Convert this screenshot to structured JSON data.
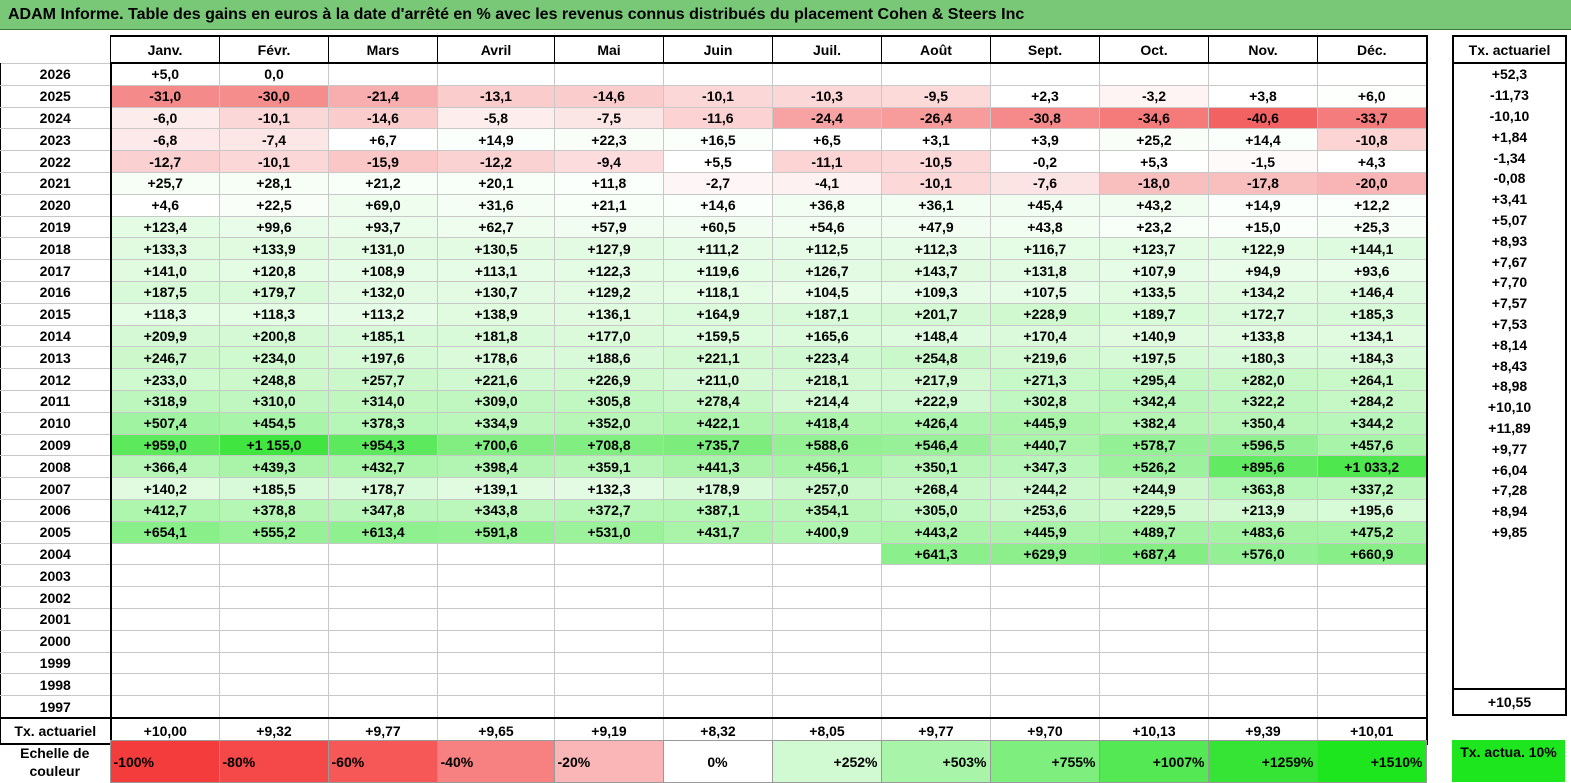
{
  "title": "ADAM Informe. Table des gains en euros à la date d'arrêté en % avec les revenus connus distribués du placement Cohen & Steers Inc",
  "months": [
    "Janv.",
    "Févr.",
    "Mars",
    "Avril",
    "Mai",
    "Juin",
    "Juil.",
    "Août",
    "Sept.",
    "Oct.",
    "Nov.",
    "Déc."
  ],
  "side_header": "Tx. actuariel",
  "rows": [
    {
      "year": "2026",
      "values": [
        "+5,0",
        "0,0",
        "",
        "",
        "",
        "",
        "",
        "",
        "",
        "",
        "",
        ""
      ],
      "colors": [
        "#ffffff",
        "#ffffff",
        "#ffffff",
        "#ffffff",
        "#ffffff",
        "#ffffff",
        "#ffffff",
        "#ffffff",
        "#ffffff",
        "#ffffff",
        "#ffffff",
        "#ffffff"
      ],
      "rate": "+52,3"
    },
    {
      "year": "2025",
      "values": [
        "-31,0",
        "-30,0",
        "-21,4",
        "-13,1",
        "-14,6",
        "-10,1",
        "-10,3",
        "-9,5",
        "+2,3",
        "-3,2",
        "+3,8",
        "+6,0"
      ],
      "colors": [
        "#f58a8a",
        "#f58d8d",
        "#f8aeae",
        "#fbcccc",
        "#facccc",
        "#fcd7d7",
        "#fcd7d7",
        "#fcdada",
        "#ffffff",
        "#fef4f4",
        "#ffffff",
        "#fdfffd"
      ],
      "rate": "-11,73"
    },
    {
      "year": "2024",
      "values": [
        "-6,0",
        "-10,1",
        "-14,6",
        "-5,8",
        "-7,5",
        "-11,6",
        "-24,4",
        "-26,4",
        "-30,8",
        "-34,6",
        "-40,6",
        "-33,7"
      ],
      "colors": [
        "#fdecec",
        "#fcd7d7",
        "#facccc",
        "#fdeded",
        "#fce5e5",
        "#fcd2d2",
        "#f8a3a3",
        "#f79b9b",
        "#f68a8a",
        "#f57a7a",
        "#f36262",
        "#f57c7c"
      ],
      "rate": "-10,10"
    },
    {
      "year": "2023",
      "values": [
        "-6,8",
        "-7,4",
        "+6,7",
        "+14,9",
        "+22,3",
        "+16,5",
        "+6,5",
        "+3,1",
        "+3,9",
        "+25,2",
        "+14,4",
        "-10,8"
      ],
      "colors": [
        "#fde9e9",
        "#fde6e6",
        "#ffffff",
        "#fbfffb",
        "#f9fef9",
        "#fbfffb",
        "#ffffff",
        "#ffffff",
        "#ffffff",
        "#f9fef9",
        "#fbfffb",
        "#fcd4d4"
      ],
      "rate": "+1,84"
    },
    {
      "year": "2022",
      "values": [
        "-12,7",
        "-10,1",
        "-15,9",
        "-12,2",
        "-9,4",
        "+5,5",
        "-11,1",
        "-10,5",
        "-0,2",
        "+5,3",
        "-1,5",
        "+4,3"
      ],
      "colors": [
        "#fbd0d0",
        "#fcd7d7",
        "#fac6c6",
        "#fbd2d2",
        "#fcdcdc",
        "#ffffff",
        "#fcd4d4",
        "#fcd8d8",
        "#ffffff",
        "#ffffff",
        "#fefafa",
        "#ffffff"
      ],
      "rate": "-1,34"
    },
    {
      "year": "2021",
      "values": [
        "+25,7",
        "+28,1",
        "+21,2",
        "+20,1",
        "+11,8",
        "-2,7",
        "-4,1",
        "-10,1",
        "-7,6",
        "-18,0",
        "-17,8",
        "-20,0"
      ],
      "colors": [
        "#f6fef6",
        "#f6fef6",
        "#f8fef8",
        "#f8fef8",
        "#fbfffb",
        "#fef6f6",
        "#fef1f1",
        "#fcd8d8",
        "#fde4e4",
        "#f9bebe",
        "#f9bfbf",
        "#f9b5b5"
      ],
      "rate": "-0,08"
    },
    {
      "year": "2020",
      "values": [
        "+4,6",
        "+22,5",
        "+69,0",
        "+31,6",
        "+21,1",
        "+14,6",
        "+36,8",
        "+36,1",
        "+45,4",
        "+43,2",
        "+14,9",
        "+12,2"
      ],
      "colors": [
        "#ffffff",
        "#f9fef9",
        "#eefdee",
        "#f5fef5",
        "#f8fef8",
        "#fbfffb",
        "#f3fef3",
        "#f3fef3",
        "#f1fdf1",
        "#f2fdf2",
        "#fbfffb",
        "#fbfffb"
      ],
      "rate": "+3,41"
    },
    {
      "year": "2019",
      "values": [
        "+123,4",
        "+99,6",
        "+93,7",
        "+62,7",
        "+57,9",
        "+60,5",
        "+54,6",
        "+47,9",
        "+43,8",
        "+23,2",
        "+15,0",
        "+25,3"
      ],
      "colors": [
        "#e4fce4",
        "#e9fce9",
        "#eafdea",
        "#effdef",
        "#f0fdf0",
        "#f0fdf0",
        "#f1fdf1",
        "#f2fdf2",
        "#f3fef3",
        "#f8fef8",
        "#fbfffb",
        "#f7fef7"
      ],
      "rate": "+5,07"
    },
    {
      "year": "2018",
      "values": [
        "+133,3",
        "+133,9",
        "+131,0",
        "+130,5",
        "+127,9",
        "+111,2",
        "+112,5",
        "+112,3",
        "+116,7",
        "+123,7",
        "+122,9",
        "+144,1"
      ],
      "colors": [
        "#e1fbe1",
        "#e1fbe1",
        "#e2fbe2",
        "#e2fbe2",
        "#e3fbe3",
        "#e6fce6",
        "#e6fce6",
        "#e6fce6",
        "#e5fce5",
        "#e4fbe4",
        "#e4fbe4",
        "#dffbdf"
      ],
      "rate": "+8,93"
    },
    {
      "year": "2017",
      "values": [
        "+141,0",
        "+120,8",
        "+108,9",
        "+113,1",
        "+122,3",
        "+119,6",
        "+126,7",
        "+143,7",
        "+131,8",
        "+107,9",
        "+94,9",
        "+93,6"
      ],
      "colors": [
        "#e0fbe0",
        "#e4fbe4",
        "#e7fce7",
        "#e6fce6",
        "#e4fbe4",
        "#e5fce5",
        "#e3fbe3",
        "#e0fbe0",
        "#e2fbe2",
        "#e7fce7",
        "#eafdea",
        "#eafdea"
      ],
      "rate": "+7,67"
    },
    {
      "year": "2016",
      "values": [
        "+187,5",
        "+179,7",
        "+132,0",
        "+130,7",
        "+129,2",
        "+118,1",
        "+104,5",
        "+109,3",
        "+107,5",
        "+133,5",
        "+134,2",
        "+146,4"
      ],
      "colors": [
        "#d8fad8",
        "#d9fad9",
        "#e2fbe2",
        "#e2fbe2",
        "#e3fbe3",
        "#e5fce5",
        "#e8fce8",
        "#e7fce7",
        "#e7fce7",
        "#e1fbe1",
        "#e1fbe1",
        "#dffbdf"
      ],
      "rate": "+7,70"
    },
    {
      "year": "2015",
      "values": [
        "+118,3",
        "+118,3",
        "+113,2",
        "+138,9",
        "+136,1",
        "+164,9",
        "+187,1",
        "+201,7",
        "+228,9",
        "+189,7",
        "+172,7",
        "+185,3"
      ],
      "colors": [
        "#e5fce5",
        "#e5fce5",
        "#e6fce6",
        "#e0fbe0",
        "#e1fbe1",
        "#dcfadc",
        "#d8fad8",
        "#d5f9d5",
        "#d0f9d0",
        "#d7fad7",
        "#dbfadb",
        "#d8fad8"
      ],
      "rate": "+7,57"
    },
    {
      "year": "2014",
      "values": [
        "+209,9",
        "+200,8",
        "+185,1",
        "+181,8",
        "+177,0",
        "+159,5",
        "+165,6",
        "+148,4",
        "+170,4",
        "+140,9",
        "+133,8",
        "+134,1"
      ],
      "colors": [
        "#d4f9d4",
        "#d5f9d5",
        "#d8fad8",
        "#d9fad9",
        "#dafada",
        "#ddfbdd",
        "#dcfadc",
        "#dffbdf",
        "#dbfadb",
        "#e0fbe0",
        "#e1fbe1",
        "#e1fbe1"
      ],
      "rate": "+7,53"
    },
    {
      "year": "2013",
      "values": [
        "+246,7",
        "+234,0",
        "+197,6",
        "+178,6",
        "+188,6",
        "+221,1",
        "+223,4",
        "+254,8",
        "+219,6",
        "+197,5",
        "+180,3",
        "+184,3"
      ],
      "colors": [
        "#ccf8cc",
        "#cff9cf",
        "#d6f9d6",
        "#dafada",
        "#d8fad8",
        "#d2f9d2",
        "#d1f9d1",
        "#cbf8cb",
        "#d2f9d2",
        "#d6f9d6",
        "#d9fad9",
        "#d8fad8"
      ],
      "rate": "+8,14"
    },
    {
      "year": "2012",
      "values": [
        "+233,0",
        "+248,8",
        "+257,7",
        "+221,6",
        "+226,9",
        "+211,0",
        "+218,1",
        "+217,9",
        "+271,3",
        "+295,4",
        "+282,0",
        "+264,1"
      ],
      "colors": [
        "#cff9cf",
        "#ccf8cc",
        "#caf8ca",
        "#d1f9d1",
        "#d0f9d0",
        "#d4f9d4",
        "#d2f9d2",
        "#d2f9d2",
        "#c7f8c7",
        "#c3f7c3",
        "#c5f8c5",
        "#c9f8c9"
      ],
      "rate": "+8,43"
    },
    {
      "year": "2011",
      "values": [
        "+318,9",
        "+310,0",
        "+314,0",
        "+309,0",
        "+305,8",
        "+278,4",
        "+214,4",
        "+222,9",
        "+302,8",
        "+342,4",
        "+322,2",
        "+284,2"
      ],
      "colors": [
        "#bef7be",
        "#c0f7c0",
        "#bff7bf",
        "#c0f7c0",
        "#c1f7c1",
        "#c6f8c6",
        "#d3f9d3",
        "#d1f9d1",
        "#c1f7c1",
        "#b9f6b9",
        "#bdf7bd",
        "#c5f8c5"
      ],
      "rate": "+8,98"
    },
    {
      "year": "2010",
      "values": [
        "+507,4",
        "+454,5",
        "+378,3",
        "+334,9",
        "+352,0",
        "+422,1",
        "+418,4",
        "+426,4",
        "+445,9",
        "+382,4",
        "+350,4",
        "+344,2"
      ],
      "colors": [
        "#a0f3a0",
        "#a8f4a8",
        "#b6f6b6",
        "#bbf6bb",
        "#b8f6b8",
        "#adf5ad",
        "#adf5ad",
        "#acf5ac",
        "#a9f4a9",
        "#b5f6b5",
        "#b8f6b8",
        "#b9f6b9"
      ],
      "rate": "+10,10"
    },
    {
      "year": "2009",
      "values": [
        "+959,0",
        "+1 155,0",
        "+954,3",
        "+700,6",
        "+708,8",
        "+735,7",
        "+588,6",
        "+546,4",
        "+440,7",
        "+578,7",
        "+596,5",
        "+457,6"
      ],
      "colors": [
        "#5ce95c",
        "#40e540",
        "#5de95d",
        "#82ee82",
        "#80ee80",
        "#7ced7c",
        "#93f093",
        "#98f198",
        "#aaf4aa",
        "#94f094",
        "#91f091",
        "#a8f4a8"
      ],
      "rate": "+11,89"
    },
    {
      "year": "2008",
      "values": [
        "+366,4",
        "+439,3",
        "+432,7",
        "+398,4",
        "+359,1",
        "+441,3",
        "+456,1",
        "+350,1",
        "+347,3",
        "+526,2",
        "+895,6",
        "+1 033,2"
      ],
      "colors": [
        "#b7f6b7",
        "#aaf4aa",
        "#abf5ab",
        "#b2f5b2",
        "#b8f6b8",
        "#a9f4a9",
        "#a7f4a7",
        "#b8f6b8",
        "#b9f6b9",
        "#9cf29c",
        "#62ea62",
        "#4ee74e"
      ],
      "rate": "+9,77"
    },
    {
      "year": "2007",
      "values": [
        "+140,2",
        "+185,5",
        "+178,7",
        "+139,1",
        "+132,3",
        "+178,9",
        "+257,0",
        "+268,4",
        "+244,2",
        "+244,9",
        "+363,8",
        "+337,2"
      ],
      "colors": [
        "#e0fbe0",
        "#d8fad8",
        "#d9fad9",
        "#e0fbe0",
        "#e2fbe2",
        "#d9fad9",
        "#caf8ca",
        "#c8f8c8",
        "#cdf8cd",
        "#ccf8cc",
        "#b6f6b6",
        "#bbf6bb"
      ],
      "rate": "+6,04"
    },
    {
      "year": "2006",
      "values": [
        "+412,7",
        "+378,8",
        "+347,8",
        "+343,8",
        "+372,7",
        "+387,1",
        "+354,1",
        "+305,0",
        "+253,6",
        "+229,5",
        "+213,9",
        "+195,6"
      ],
      "colors": [
        "#aef5ae",
        "#b5f6b5",
        "#b9f6b9",
        "#bbf6bb",
        "#b6f6b6",
        "#b4f6b4",
        "#b8f6b8",
        "#c1f7c1",
        "#cbf8cb",
        "#d0f9d0",
        "#d3f9d3",
        "#d7fad7"
      ],
      "rate": "+7,28"
    },
    {
      "year": "2005",
      "values": [
        "+654,1",
        "+555,2",
        "+613,4",
        "+591,8",
        "+531,0",
        "+431,7",
        "+400,9",
        "+443,2",
        "+445,9",
        "+489,7",
        "+483,6",
        "+475,2"
      ],
      "colors": [
        "#89ef89",
        "#97f197",
        "#8ff08f",
        "#93f093",
        "#9bf29b",
        "#aaf4aa",
        "#b0f5b0",
        "#aaf4aa",
        "#a9f4a9",
        "#a3f3a3",
        "#a3f3a3",
        "#a5f4a5"
      ],
      "rate": "+8,94"
    },
    {
      "year": "2004",
      "values": [
        "",
        "",
        "",
        "",
        "",
        "",
        "",
        "+641,3",
        "+629,9",
        "+687,4",
        "+576,0",
        "+660,9"
      ],
      "colors": [
        "#ffffff",
        "#ffffff",
        "#ffffff",
        "#ffffff",
        "#ffffff",
        "#ffffff",
        "#ffffff",
        "#8bef8b",
        "#8cef8c",
        "#84ee84",
        "#94f094",
        "#88ef88"
      ],
      "rate": "+9,85"
    },
    {
      "year": "2003",
      "values": [
        "",
        "",
        "",
        "",
        "",
        "",
        "",
        "",
        "",
        "",
        "",
        ""
      ],
      "colors": [
        "#ffffff",
        "#ffffff",
        "#ffffff",
        "#ffffff",
        "#ffffff",
        "#ffffff",
        "#ffffff",
        "#ffffff",
        "#ffffff",
        "#ffffff",
        "#ffffff",
        "#ffffff"
      ],
      "rate": ""
    },
    {
      "year": "2002",
      "values": [
        "",
        "",
        "",
        "",
        "",
        "",
        "",
        "",
        "",
        "",
        "",
        ""
      ],
      "colors": [
        "#ffffff",
        "#ffffff",
        "#ffffff",
        "#ffffff",
        "#ffffff",
        "#ffffff",
        "#ffffff",
        "#ffffff",
        "#ffffff",
        "#ffffff",
        "#ffffff",
        "#ffffff"
      ],
      "rate": ""
    },
    {
      "year": "2001",
      "values": [
        "",
        "",
        "",
        "",
        "",
        "",
        "",
        "",
        "",
        "",
        "",
        ""
      ],
      "colors": [
        "#ffffff",
        "#ffffff",
        "#ffffff",
        "#ffffff",
        "#ffffff",
        "#ffffff",
        "#ffffff",
        "#ffffff",
        "#ffffff",
        "#ffffff",
        "#ffffff",
        "#ffffff"
      ],
      "rate": ""
    },
    {
      "year": "2000",
      "values": [
        "",
        "",
        "",
        "",
        "",
        "",
        "",
        "",
        "",
        "",
        "",
        ""
      ],
      "colors": [
        "#ffffff",
        "#ffffff",
        "#ffffff",
        "#ffffff",
        "#ffffff",
        "#ffffff",
        "#ffffff",
        "#ffffff",
        "#ffffff",
        "#ffffff",
        "#ffffff",
        "#ffffff"
      ],
      "rate": ""
    },
    {
      "year": "1999",
      "values": [
        "",
        "",
        "",
        "",
        "",
        "",
        "",
        "",
        "",
        "",
        "",
        ""
      ],
      "colors": [
        "#ffffff",
        "#ffffff",
        "#ffffff",
        "#ffffff",
        "#ffffff",
        "#ffffff",
        "#ffffff",
        "#ffffff",
        "#ffffff",
        "#ffffff",
        "#ffffff",
        "#ffffff"
      ],
      "rate": ""
    },
    {
      "year": "1998",
      "values": [
        "",
        "",
        "",
        "",
        "",
        "",
        "",
        "",
        "",
        "",
        "",
        ""
      ],
      "colors": [
        "#ffffff",
        "#ffffff",
        "#ffffff",
        "#ffffff",
        "#ffffff",
        "#ffffff",
        "#ffffff",
        "#ffffff",
        "#ffffff",
        "#ffffff",
        "#ffffff",
        "#ffffff"
      ],
      "rate": ""
    },
    {
      "year": "1997",
      "values": [
        "",
        "",
        "",
        "",
        "",
        "",
        "",
        "",
        "",
        "",
        "",
        ""
      ],
      "colors": [
        "#ffffff",
        "#ffffff",
        "#ffffff",
        "#ffffff",
        "#ffffff",
        "#ffffff",
        "#ffffff",
        "#ffffff",
        "#ffffff",
        "#ffffff",
        "#ffffff",
        "#ffffff"
      ],
      "rate": ""
    }
  ],
  "tx_row": {
    "label": "Tx. actuariel",
    "values": [
      "+10,00",
      "+9,32",
      "+9,77",
      "+9,65",
      "+9,19",
      "+8,32",
      "+8,05",
      "+9,77",
      "+9,70",
      "+10,13",
      "+9,39",
      "+10,01"
    ],
    "total": "+10,55"
  },
  "legend": {
    "label": "Echelle de couleur",
    "items": [
      {
        "text": "-100%",
        "color": "#f53c3c",
        "kind": "neg"
      },
      {
        "text": "-80%",
        "color": "#f54848",
        "kind": "neg"
      },
      {
        "text": "-60%",
        "color": "#f65858",
        "kind": "neg"
      },
      {
        "text": "-40%",
        "color": "#f78080",
        "kind": "neg"
      },
      {
        "text": "-20%",
        "color": "#fab6b6",
        "kind": "neg"
      },
      {
        "text": "0%",
        "color": "#ffffff",
        "kind": "zero"
      },
      {
        "text": "+252%",
        "color": "#d2fad2",
        "kind": "pos"
      },
      {
        "text": "+503%",
        "color": "#a8f4a8",
        "kind": "pos"
      },
      {
        "text": "+755%",
        "color": "#7eee7e",
        "kind": "pos"
      },
      {
        "text": "+1007%",
        "color": "#54e854",
        "kind": "pos"
      },
      {
        "text": "+1259%",
        "color": "#36e436",
        "kind": "pos"
      },
      {
        "text": "+1510%",
        "color": "#1ee61e",
        "kind": "pos"
      }
    ],
    "tx_box": "Tx. actua. 10%",
    "tx_box_color": "#1ee61e"
  }
}
